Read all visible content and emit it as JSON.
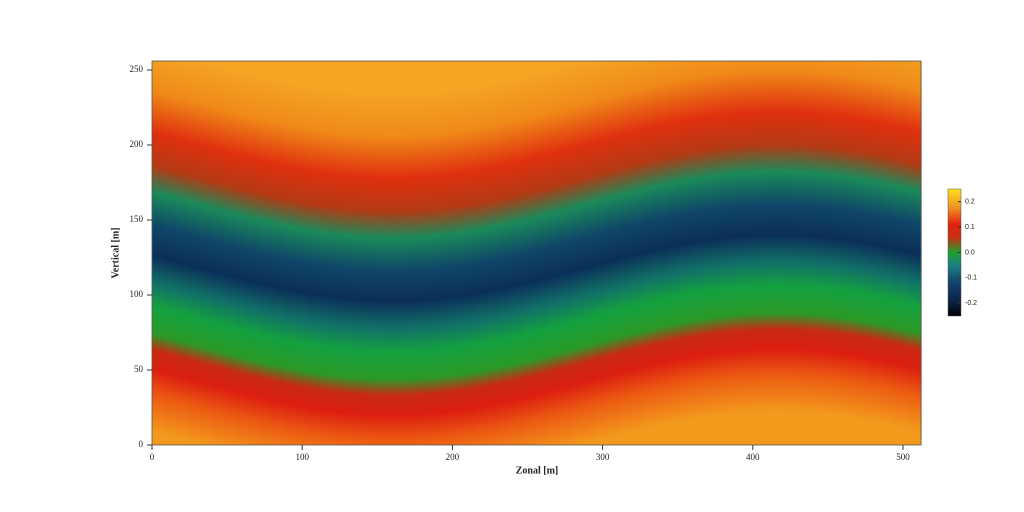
{
  "chart_data": {
    "type": "heatmap",
    "xlabel": "Zonal [m]",
    "ylabel": "Vertical [m]",
    "xlim": [
      0,
      512
    ],
    "xticks": [
      0,
      100,
      200,
      300,
      400,
      500
    ],
    "ylim": [
      0,
      256
    ],
    "yticks": [
      0,
      50,
      100,
      150,
      200,
      250
    ],
    "colorbar": {
      "clim": [
        -0.25,
        0.25
      ],
      "ticks": [
        -0.2,
        -0.1,
        {
          "value": 0,
          "label": "0.0"
        },
        0.1,
        0.2
      ]
    }
  }
}
